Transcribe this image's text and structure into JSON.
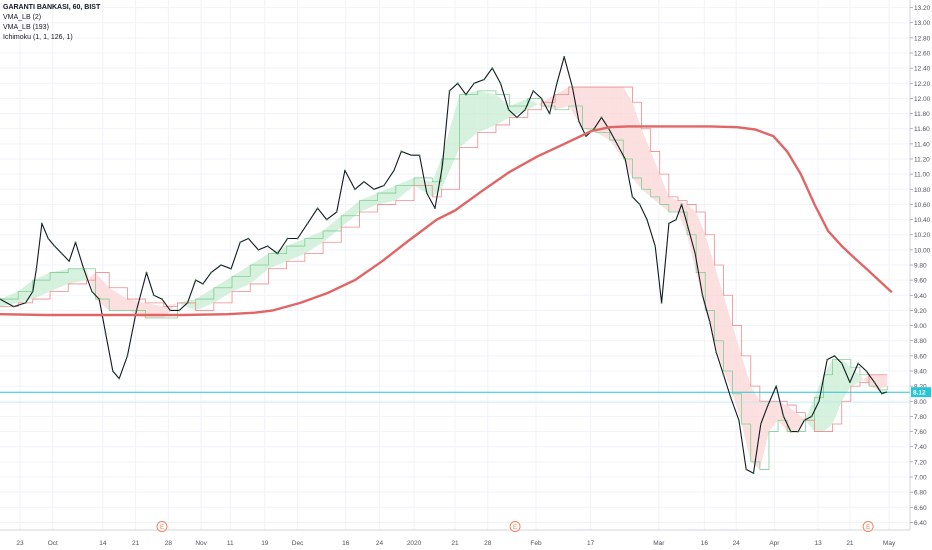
{
  "legend": {
    "title": "GARANTI BANKASI, 60, BIST",
    "line2": "VMA_LB (2)",
    "line3": "VMA_LB (193)",
    "line4": "Ichimoku (1, 1, 126, 1)"
  },
  "chart_data": {
    "type": "line",
    "title": "GARANTI BANKASI, 60, BIST",
    "ylim": [
      6.3,
      13.3
    ],
    "yticks": [
      6.4,
      6.6,
      6.8,
      7.0,
      7.2,
      7.4,
      7.6,
      7.8,
      8.0,
      8.2,
      8.4,
      8.6,
      8.8,
      9.0,
      9.2,
      9.4,
      9.6,
      9.8,
      10.0,
      10.2,
      10.4,
      10.6,
      10.8,
      11.0,
      11.2,
      11.4,
      11.6,
      11.8,
      12.0,
      12.2,
      12.4,
      12.6,
      12.8,
      13.0,
      13.2
    ],
    "xlim": [
      0,
      100
    ],
    "xticks": [
      {
        "x": 2.2,
        "label": "23"
      },
      {
        "x": 5.8,
        "label": "Oct"
      },
      {
        "x": 11.3,
        "label": "14"
      },
      {
        "x": 14.9,
        "label": "21"
      },
      {
        "x": 18.5,
        "label": "28"
      },
      {
        "x": 22.1,
        "label": "Nov"
      },
      {
        "x": 25.3,
        "label": "11"
      },
      {
        "x": 29.1,
        "label": "19"
      },
      {
        "x": 32.7,
        "label": "Dec"
      },
      {
        "x": 38.0,
        "label": "16"
      },
      {
        "x": 41.7,
        "label": "24"
      },
      {
        "x": 45.5,
        "label": "2020"
      },
      {
        "x": 50.0,
        "label": "21"
      },
      {
        "x": 53.6,
        "label": "28"
      },
      {
        "x": 58.9,
        "label": "Feb"
      },
      {
        "x": 64.9,
        "label": "17"
      },
      {
        "x": 72.4,
        "label": "Mar"
      },
      {
        "x": 77.4,
        "label": "16"
      },
      {
        "x": 80.9,
        "label": "24"
      },
      {
        "x": 85.1,
        "label": "Apr"
      },
      {
        "x": 89.9,
        "label": "13"
      },
      {
        "x": 93.4,
        "label": "21"
      },
      {
        "x": 97.7,
        "label": "May"
      }
    ],
    "earnings_markers": [
      {
        "x": 17.8,
        "label": "E"
      },
      {
        "x": 56.6,
        "label": "E"
      },
      {
        "x": 95.4,
        "label": "E"
      }
    ],
    "last_price": {
      "value": 8.12,
      "label": "8.12"
    },
    "series": [
      {
        "name": "VMA_LB (2)",
        "color": "#131722",
        "points": [
          [
            0,
            9.35
          ],
          [
            1.5,
            9.25
          ],
          [
            2.8,
            9.3
          ],
          [
            3.6,
            9.45
          ],
          [
            4.0,
            9.75
          ],
          [
            4.6,
            10.35
          ],
          [
            5.3,
            10.15
          ],
          [
            6.0,
            10.05
          ],
          [
            6.8,
            9.95
          ],
          [
            7.6,
            9.85
          ],
          [
            8.3,
            10.1
          ],
          [
            9.2,
            9.75
          ],
          [
            10.1,
            9.45
          ],
          [
            10.9,
            9.35
          ],
          [
            11.6,
            8.9
          ],
          [
            12.4,
            8.4
          ],
          [
            13.1,
            8.3
          ],
          [
            14.0,
            8.6
          ],
          [
            15.0,
            9.2
          ],
          [
            16.1,
            9.7
          ],
          [
            16.9,
            9.4
          ],
          [
            17.8,
            9.35
          ],
          [
            18.7,
            9.2
          ],
          [
            19.7,
            9.2
          ],
          [
            20.6,
            9.3
          ],
          [
            21.5,
            9.6
          ],
          [
            22.3,
            9.55
          ],
          [
            23.2,
            9.7
          ],
          [
            24.3,
            9.8
          ],
          [
            25.4,
            9.75
          ],
          [
            26.4,
            10.1
          ],
          [
            27.3,
            10.15
          ],
          [
            28.4,
            10.0
          ],
          [
            29.4,
            10.05
          ],
          [
            30.5,
            9.95
          ],
          [
            31.6,
            10.15
          ],
          [
            32.7,
            10.15
          ],
          [
            33.8,
            10.35
          ],
          [
            34.9,
            10.55
          ],
          [
            35.9,
            10.4
          ],
          [
            37.0,
            10.5
          ],
          [
            37.9,
            11.05
          ],
          [
            39.0,
            10.8
          ],
          [
            40.0,
            10.9
          ],
          [
            41.1,
            10.8
          ],
          [
            42.2,
            10.85
          ],
          [
            43.3,
            11.05
          ],
          [
            44.1,
            11.3
          ],
          [
            45.2,
            11.25
          ],
          [
            46.1,
            11.25
          ],
          [
            46.9,
            10.75
          ],
          [
            47.8,
            10.55
          ],
          [
            48.6,
            11.1
          ],
          [
            49.4,
            12.1
          ],
          [
            50.3,
            12.2
          ],
          [
            51.2,
            12.05
          ],
          [
            52.1,
            12.2
          ],
          [
            53.2,
            12.25
          ],
          [
            54.1,
            12.4
          ],
          [
            55.0,
            12.2
          ],
          [
            55.9,
            11.85
          ],
          [
            56.8,
            11.75
          ],
          [
            57.7,
            11.85
          ],
          [
            58.6,
            12.1
          ],
          [
            59.5,
            12.0
          ],
          [
            60.4,
            11.8
          ],
          [
            61.2,
            12.2
          ],
          [
            62.0,
            12.55
          ],
          [
            62.9,
            12.15
          ],
          [
            63.6,
            11.7
          ],
          [
            64.4,
            11.5
          ],
          [
            65.3,
            11.6
          ],
          [
            66.1,
            11.75
          ],
          [
            66.9,
            11.6
          ],
          [
            67.8,
            11.4
          ],
          [
            68.7,
            11.2
          ],
          [
            69.5,
            10.7
          ],
          [
            70.3,
            10.6
          ],
          [
            71.1,
            10.4
          ],
          [
            72.0,
            10.05
          ],
          [
            72.7,
            9.3
          ],
          [
            73.5,
            10.35
          ],
          [
            74.3,
            10.4
          ],
          [
            74.9,
            10.6
          ],
          [
            75.6,
            10.3
          ],
          [
            76.4,
            9.95
          ],
          [
            77.2,
            9.4
          ],
          [
            78.0,
            9.05
          ],
          [
            78.7,
            8.65
          ],
          [
            79.5,
            8.35
          ],
          [
            80.3,
            8.05
          ],
          [
            81.2,
            7.75
          ],
          [
            82.0,
            7.1
          ],
          [
            82.8,
            7.05
          ],
          [
            83.6,
            7.7
          ],
          [
            84.4,
            7.95
          ],
          [
            85.3,
            8.2
          ],
          [
            86.1,
            7.8
          ],
          [
            86.9,
            7.6
          ],
          [
            87.7,
            7.6
          ],
          [
            88.4,
            7.75
          ],
          [
            89.2,
            7.8
          ],
          [
            90.0,
            8.0
          ],
          [
            90.9,
            8.55
          ],
          [
            91.7,
            8.6
          ],
          [
            92.5,
            8.5
          ],
          [
            93.4,
            8.25
          ],
          [
            94.3,
            8.5
          ],
          [
            95.2,
            8.4
          ],
          [
            96.1,
            8.25
          ],
          [
            96.9,
            8.1
          ],
          [
            97.4,
            8.12
          ]
        ]
      },
      {
        "name": "VMA_LB (193)",
        "color": "#e06666",
        "points": [
          [
            0,
            9.15
          ],
          [
            5,
            9.14
          ],
          [
            10,
            9.14
          ],
          [
            15,
            9.14
          ],
          [
            20,
            9.14
          ],
          [
            25,
            9.15
          ],
          [
            28,
            9.17
          ],
          [
            30,
            9.2
          ],
          [
            33,
            9.3
          ],
          [
            36,
            9.43
          ],
          [
            39,
            9.6
          ],
          [
            42,
            9.85
          ],
          [
            45,
            10.13
          ],
          [
            48,
            10.4
          ],
          [
            50,
            10.52
          ],
          [
            53,
            10.78
          ],
          [
            56,
            11.03
          ],
          [
            59,
            11.23
          ],
          [
            62,
            11.4
          ],
          [
            65,
            11.57
          ],
          [
            67,
            11.62
          ],
          [
            69,
            11.63
          ],
          [
            72,
            11.63
          ],
          [
            75,
            11.63
          ],
          [
            78,
            11.63
          ],
          [
            81,
            11.62
          ],
          [
            83,
            11.59
          ],
          [
            85,
            11.5
          ],
          [
            86.5,
            11.3
          ],
          [
            88,
            11.0
          ],
          [
            89.5,
            10.6
          ],
          [
            91,
            10.25
          ],
          [
            92.5,
            10.05
          ],
          [
            94,
            9.88
          ],
          [
            95.5,
            9.72
          ],
          [
            97,
            9.55
          ],
          [
            98,
            9.44
          ]
        ]
      }
    ],
    "cloud": {
      "name": "Ichimoku (1, 1, 126, 1)",
      "bullish_color": "#c8ecd1",
      "bearish_color": "#fbd6d6",
      "points": [
        [
          0,
          9.35,
          9.25
        ],
        [
          2,
          9.45,
          9.3
        ],
        [
          3.6,
          9.6,
          9.35
        ],
        [
          5.5,
          9.7,
          9.45
        ],
        [
          7.5,
          9.75,
          9.55
        ],
        [
          9.5,
          9.75,
          9.6
        ],
        [
          10.5,
          9.35,
          9.7
        ],
        [
          12.0,
          9.2,
          9.5
        ],
        [
          14.0,
          9.2,
          9.35
        ],
        [
          16.0,
          9.1,
          9.3
        ],
        [
          18.0,
          9.1,
          9.25
        ],
        [
          19.5,
          9.3,
          9.3
        ],
        [
          21.5,
          9.35,
          9.2
        ],
        [
          23.5,
          9.5,
          9.3
        ],
        [
          25.5,
          9.65,
          9.45
        ],
        [
          27.5,
          9.8,
          9.55
        ],
        [
          29.5,
          9.95,
          9.75
        ],
        [
          31.5,
          10.05,
          9.85
        ],
        [
          33.5,
          10.15,
          9.95
        ],
        [
          35.5,
          10.25,
          10.1
        ],
        [
          37.5,
          10.45,
          10.3
        ],
        [
          39.5,
          10.65,
          10.5
        ],
        [
          41.5,
          10.75,
          10.6
        ],
        [
          43.5,
          10.85,
          10.65
        ],
        [
          45.5,
          10.95,
          10.85
        ],
        [
          47.5,
          10.9,
          10.7
        ],
        [
          48.5,
          11.2,
          10.8
        ],
        [
          50.5,
          12.05,
          11.35
        ],
        [
          52.5,
          12.1,
          11.55
        ],
        [
          54.5,
          12.05,
          11.65
        ],
        [
          56.0,
          11.9,
          11.75
        ],
        [
          58.0,
          12.0,
          11.85
        ],
        [
          59.5,
          11.9,
          11.95
        ],
        [
          61.0,
          11.85,
          12.05
        ],
        [
          62.5,
          11.9,
          12.15
        ],
        [
          64.0,
          11.6,
          12.15
        ],
        [
          65.5,
          11.55,
          12.15
        ],
        [
          67.0,
          11.45,
          12.15
        ],
        [
          68.5,
          11.2,
          12.15
        ],
        [
          69.5,
          10.95,
          11.95
        ],
        [
          70.5,
          10.8,
          11.6
        ],
        [
          71.5,
          10.7,
          11.3
        ],
        [
          72.5,
          10.6,
          11.0
        ],
        [
          73.5,
          10.5,
          10.7
        ],
        [
          74.5,
          10.5,
          10.65
        ],
        [
          75.5,
          10.2,
          10.6
        ],
        [
          76.5,
          9.7,
          10.5
        ],
        [
          77.5,
          9.2,
          10.2
        ],
        [
          78.5,
          8.8,
          9.8
        ],
        [
          79.5,
          8.4,
          9.4
        ],
        [
          80.5,
          8.1,
          9.0
        ],
        [
          81.5,
          7.7,
          8.6
        ],
        [
          82.5,
          7.2,
          8.2
        ],
        [
          83.5,
          7.1,
          8.0
        ],
        [
          84.5,
          7.6,
          8.0
        ],
        [
          85.5,
          7.75,
          8.0
        ],
        [
          86.5,
          7.6,
          7.95
        ],
        [
          87.5,
          7.6,
          7.85
        ],
        [
          88.5,
          7.75,
          7.75
        ],
        [
          89.5,
          8.05,
          7.6
        ],
        [
          90.5,
          8.35,
          7.6
        ],
        [
          91.5,
          8.55,
          7.7
        ],
        [
          92.5,
          8.55,
          8.0
        ],
        [
          93.5,
          8.45,
          8.2
        ],
        [
          94.5,
          8.35,
          8.25
        ],
        [
          95.5,
          8.2,
          8.35
        ],
        [
          96.5,
          8.15,
          8.35
        ],
        [
          97.5,
          8.2,
          8.35
        ]
      ]
    }
  }
}
